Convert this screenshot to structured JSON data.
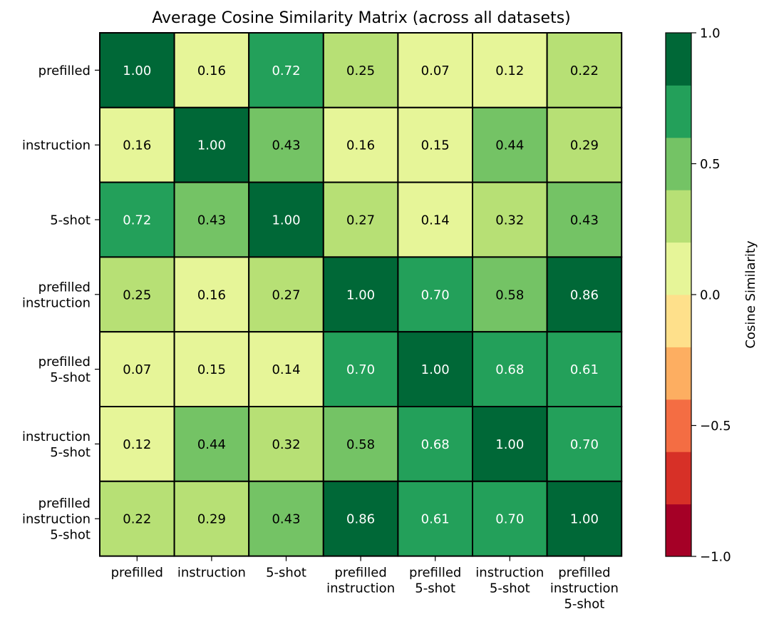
{
  "chart_data": {
    "type": "heatmap",
    "title": "Average Cosine Similarity Matrix (across all datasets)",
    "rows": [
      [
        "prefilled"
      ],
      [
        "instruction"
      ],
      [
        "5-shot"
      ],
      [
        "prefilled",
        "instruction"
      ],
      [
        "prefilled",
        "5-shot"
      ],
      [
        "instruction",
        "5-shot"
      ],
      [
        "prefilled",
        "instruction",
        "5-shot"
      ]
    ],
    "columns": [
      [
        "prefilled"
      ],
      [
        "instruction"
      ],
      [
        "5-shot"
      ],
      [
        "prefilled",
        "instruction"
      ],
      [
        "prefilled",
        "5-shot"
      ],
      [
        "instruction",
        "5-shot"
      ],
      [
        "prefilled",
        "instruction",
        "5-shot"
      ]
    ],
    "values": [
      [
        1.0,
        0.16,
        0.72,
        0.25,
        0.07,
        0.12,
        0.22
      ],
      [
        0.16,
        1.0,
        0.43,
        0.16,
        0.15,
        0.44,
        0.29
      ],
      [
        0.72,
        0.43,
        1.0,
        0.27,
        0.14,
        0.32,
        0.43
      ],
      [
        0.25,
        0.16,
        0.27,
        1.0,
        0.7,
        0.58,
        0.86
      ],
      [
        0.07,
        0.15,
        0.14,
        0.7,
        1.0,
        0.68,
        0.61
      ],
      [
        0.12,
        0.44,
        0.32,
        0.58,
        0.68,
        1.0,
        0.7
      ],
      [
        0.22,
        0.29,
        0.43,
        0.86,
        0.61,
        0.7,
        1.0
      ]
    ],
    "colorbar": {
      "label": "Cosine Similarity",
      "range": [
        -1.0,
        1.0
      ],
      "ticks": [
        1.0,
        0.5,
        0.0,
        -0.5,
        -1.0
      ],
      "tick_labels": [
        "1.0",
        "0.5",
        "0.0",
        "−0.5",
        "−1.0"
      ],
      "bands": [
        "#a50026",
        "#d73027",
        "#f46d43",
        "#fdae61",
        "#fee08b",
        "#e6f598",
        "#b7e075",
        "#74c365",
        "#23a05a",
        "#006837"
      ]
    }
  }
}
